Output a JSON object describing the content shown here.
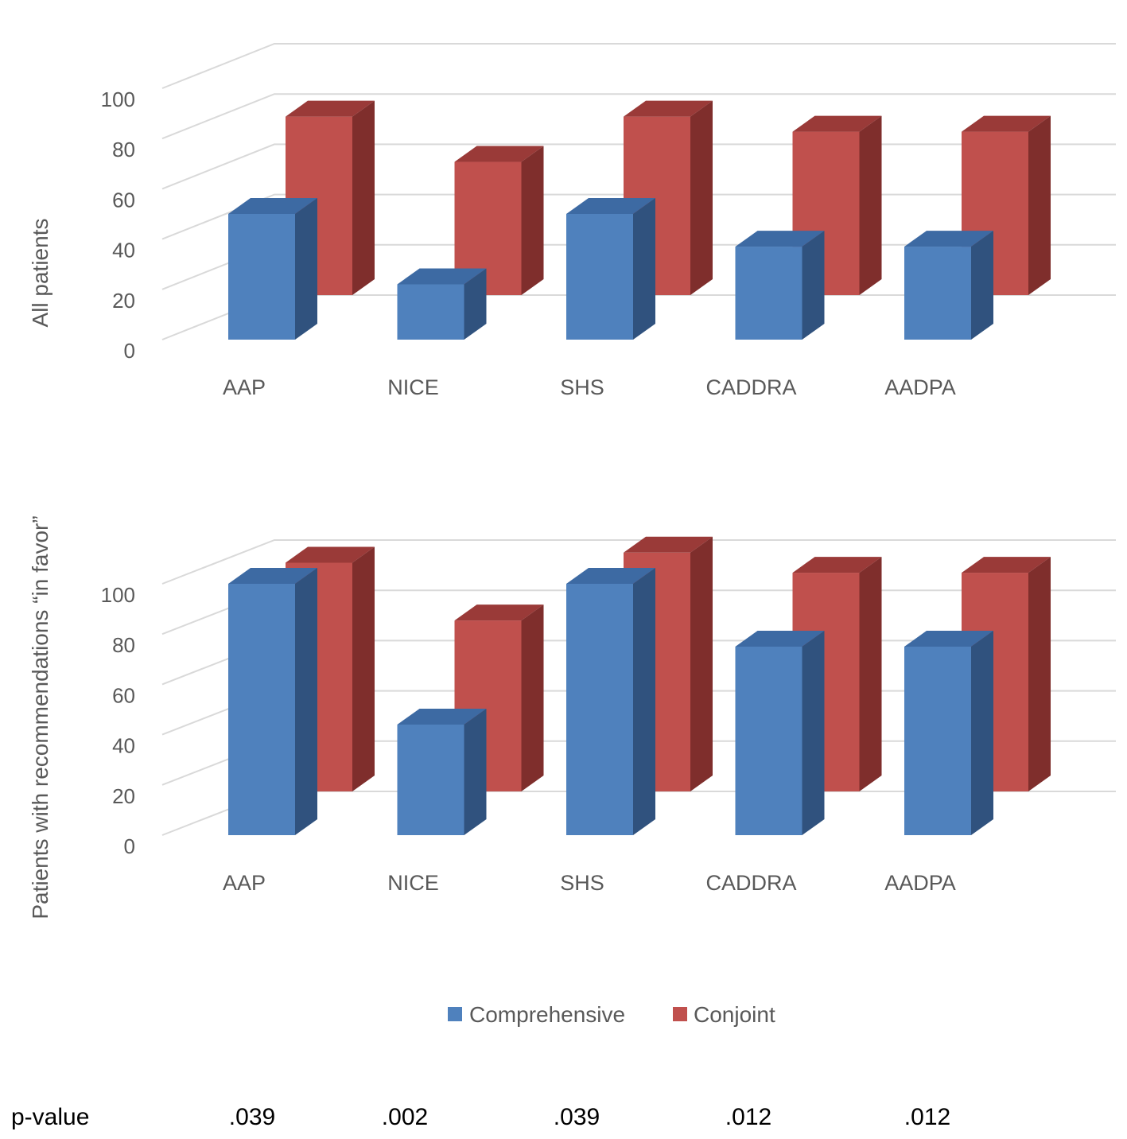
{
  "chart_data": [
    {
      "type": "bar",
      "style": "3d-clustered-column",
      "ylabel": "All patients",
      "categories": [
        "AAP",
        "NICE",
        "SHS",
        "CADDRA",
        "AADPA"
      ],
      "yticks": [
        "0",
        "20",
        "40",
        "60",
        "80",
        "100"
      ],
      "ylim": [
        0,
        100
      ],
      "series": [
        {
          "name": "Comprehensive",
          "values": [
            50,
            22,
            50,
            37,
            37
          ]
        },
        {
          "name": "Conjoint",
          "values": [
            71,
            53,
            71,
            65,
            65
          ]
        }
      ]
    },
    {
      "type": "bar",
      "style": "3d-clustered-column",
      "ylabel": "Patients with recommendations “in favor”",
      "categories": [
        "AAP",
        "NICE",
        "SHS",
        "CADDRA",
        "AADPA"
      ],
      "yticks": [
        "0",
        "20",
        "40",
        "60",
        "80",
        "100"
      ],
      "ylim": [
        0,
        100
      ],
      "series": [
        {
          "name": "Comprehensive",
          "values": [
            100,
            44,
            100,
            75,
            75
          ]
        },
        {
          "name": "Conjoint",
          "values": [
            91,
            68,
            95,
            87,
            87
          ]
        }
      ]
    }
  ],
  "legend": [
    {
      "name": "Comprehensive",
      "color": "#4f81bd"
    },
    {
      "name": "Conjoint",
      "color": "#c0504d"
    }
  ],
  "pvalues": {
    "label": "p-value",
    "values": [
      ".039",
      ".002",
      ".039",
      ".012",
      ".012"
    ]
  },
  "colors": {
    "comprehensive": {
      "front": "#4f81bd",
      "top": "#3d6aa3",
      "side": "#30527e"
    },
    "conjoint": {
      "front": "#c0504d",
      "top": "#9a3a38",
      "side": "#7f2e2c"
    }
  }
}
